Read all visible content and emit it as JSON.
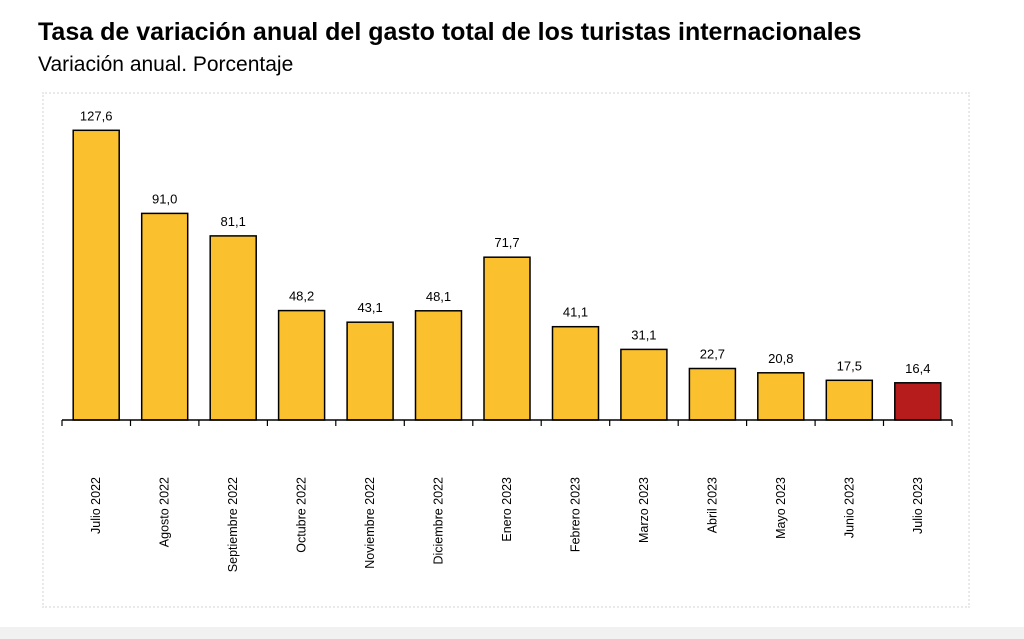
{
  "header": {
    "title": "Tasa de variación anual del gasto total de los turistas internacionales",
    "subtitle": "Variación anual. Porcentaje"
  },
  "chart_data": {
    "type": "bar",
    "title": "Tasa de variación anual del gasto total de los turistas internacionales",
    "subtitle": "Variación anual. Porcentaje",
    "categories": [
      "Julio 2022",
      "Agosto 2022",
      "Septiembre 2022",
      "Octubre 2022",
      "Noviembre 2022",
      "Diciembre 2022",
      "Enero 2023",
      "Febrero 2023",
      "Marzo 2023",
      "Abril 2023",
      "Mayo 2023",
      "Junio 2023",
      "Julio 2023"
    ],
    "values": [
      127.6,
      91.0,
      81.1,
      48.2,
      43.1,
      48.1,
      71.7,
      41.1,
      31.1,
      22.7,
      20.8,
      17.5,
      16.4
    ],
    "value_labels": [
      "127,6",
      "91,0",
      "81,1",
      "48,2",
      "43,1",
      "48,1",
      "71,7",
      "41,1",
      "31,1",
      "22,7",
      "20,8",
      "17,5",
      "16,4"
    ],
    "xlabel": "",
    "ylabel": "",
    "ylim": [
      0,
      130
    ],
    "grid": false,
    "legend": "none",
    "colors": {
      "bar": "#FBC02D",
      "highlight": "#B71C1C",
      "highlight_index": 12,
      "outline": "#000000"
    }
  }
}
